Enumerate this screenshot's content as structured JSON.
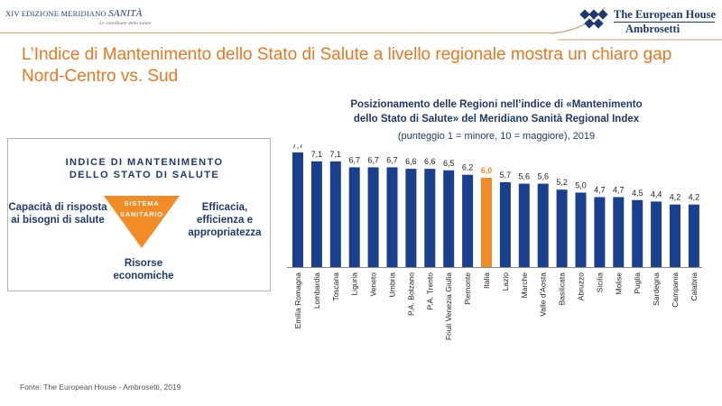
{
  "header": {
    "edition": "XIV EDIZIONE MERIDIANO",
    "sanita": "SANITÀ",
    "tagline": "Le coordinate della salute",
    "logo_line1": "The European House",
    "logo_line2": "Ambrosetti"
  },
  "title": "L’Indice di Mantenimento dello Stato di Salute a livello regionale mostra un chiaro gap Nord-Centro vs. Sud",
  "box": {
    "heading_line1": "INDICE DI MANTENIMENTO",
    "heading_line2": "DELLO STATO DI SALUTE",
    "left_text": "Capacità di risposta ai bisogni di salute",
    "right_text": "Efficacia, efficienza e appropriatezza",
    "bottom_text": "Risorse economiche",
    "triangle_line1": "SISTEMA",
    "triangle_line2": "SANITARIO"
  },
  "source": "Fonte: The European House - Ambrosetti, 2019",
  "colors": {
    "bar": "#1b3f8f",
    "highlight": "#f28a25",
    "title": "#e87722",
    "navy": "#1f3a6e"
  },
  "chart_data": {
    "type": "bar",
    "title_line1": "Posizionamento delle Regioni nell’indice di «Mantenimento",
    "title_line2": "dello Stato di Salute» del Meridiano Sanità Regional Index",
    "subtitle": "(punteggio 1 = minore, 10 = maggiore), 2019",
    "categories": [
      "Emilia Romagna",
      "Lombardia",
      "Toscana",
      "Liguria",
      "Veneto",
      "Umbria",
      "P.A. Bolzano",
      "P.A. Trento",
      "Friuli Venezia Giulia",
      "Piemonte",
      "Italia",
      "Lazio",
      "Marche",
      "Valle d'Aosta",
      "Basilicata",
      "Abruzzo",
      "Sicilia",
      "Molise",
      "Puglia",
      "Sardegna",
      "Campania",
      "Calabria"
    ],
    "values": [
      7.7,
      7.1,
      7.1,
      6.7,
      6.7,
      6.7,
      6.6,
      6.6,
      6.5,
      6.2,
      6.0,
      5.7,
      5.6,
      5.6,
      5.2,
      5.0,
      4.7,
      4.7,
      4.5,
      4.4,
      4.2,
      4.2
    ],
    "value_labels": [
      "7,7",
      "7,1",
      "7,1",
      "6,7",
      "6,7",
      "6,7",
      "6,6",
      "6,6",
      "6,5",
      "6,2",
      "6,0",
      "5,7",
      "5,6",
      "5,6",
      "5,2",
      "5,0",
      "4,7",
      "4,7",
      "4,5",
      "4,4",
      "4,2",
      "4,2"
    ],
    "highlight_category": "Italia",
    "ylim": [
      0,
      8
    ],
    "xlabel": "",
    "ylabel": ""
  }
}
